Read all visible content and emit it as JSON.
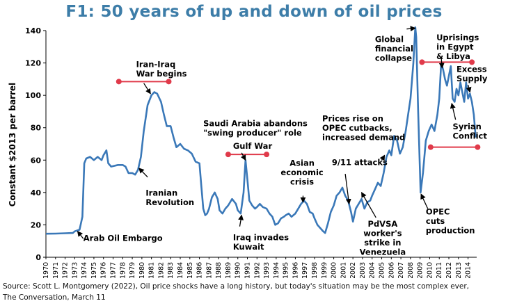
{
  "title": "F1: 50 years of up and down of oil prices",
  "source_line1": "Source: Scott L. Montgomery (2022), Oil price shocks have a long history, but today's situation may be the most complex ever,",
  "source_line2": "The Conversation, March 11",
  "colors": {
    "title": "#3d7da8",
    "line": "#3a78b8",
    "marker": "#e03a4a",
    "axis": "#000000"
  },
  "chart_data": {
    "type": "line",
    "title": "",
    "xlabel": "",
    "ylabel": "Constant $2013 per barrel",
    "xlim": [
      1970,
      2014.9
    ],
    "ylim": [
      0,
      140
    ],
    "yticks": [
      0,
      20,
      40,
      60,
      80,
      100,
      120,
      140
    ],
    "xticks": [
      "1970",
      "1971",
      "1972",
      "1973",
      "1974",
      "1975",
      "1976",
      "1977",
      "1978",
      "1979",
      "1980",
      "1981",
      "1982",
      "1983",
      "1984",
      "1985",
      "1986",
      "1987",
      "1988",
      "1989",
      "1990",
      "1991",
      "1992",
      "1993",
      "1994",
      "1995",
      "1996",
      "1997",
      "1998",
      "1999",
      "2000",
      "2001",
      "2002",
      "2003",
      "2004",
      "2005",
      "2006",
      "2007",
      "2008",
      "2009",
      "2010",
      "2011",
      "2012",
      "2013",
      "2014"
    ],
    "series": [
      {
        "name": "",
        "points": [
          [
            1970.0,
            14.5
          ],
          [
            1971.0,
            14.6
          ],
          [
            1972.0,
            14.8
          ],
          [
            1972.8,
            15.0
          ],
          [
            1973.0,
            16.0
          ],
          [
            1973.5,
            17.0
          ],
          [
            1973.8,
            25
          ],
          [
            1974.0,
            58
          ],
          [
            1974.2,
            61
          ],
          [
            1974.6,
            62
          ],
          [
            1975.0,
            60
          ],
          [
            1975.4,
            62
          ],
          [
            1975.8,
            60
          ],
          [
            1976.0,
            63
          ],
          [
            1976.3,
            66
          ],
          [
            1976.5,
            58
          ],
          [
            1976.8,
            56
          ],
          [
            1977.5,
            57
          ],
          [
            1978.0,
            57
          ],
          [
            1978.3,
            56
          ],
          [
            1978.6,
            52
          ],
          [
            1979.0,
            52
          ],
          [
            1979.3,
            51
          ],
          [
            1979.6,
            54
          ],
          [
            1979.9,
            62
          ],
          [
            1980.2,
            78
          ],
          [
            1980.6,
            94
          ],
          [
            1981.0,
            100
          ],
          [
            1981.3,
            102
          ],
          [
            1981.6,
            101
          ],
          [
            1982.0,
            96
          ],
          [
            1982.3,
            88
          ],
          [
            1982.6,
            81
          ],
          [
            1983.0,
            81
          ],
          [
            1983.3,
            74
          ],
          [
            1983.6,
            68
          ],
          [
            1984.0,
            70
          ],
          [
            1984.4,
            67
          ],
          [
            1984.8,
            66
          ],
          [
            1985.2,
            64
          ],
          [
            1985.6,
            59
          ],
          [
            1986.0,
            58
          ],
          [
            1986.2,
            44
          ],
          [
            1986.4,
            30
          ],
          [
            1986.6,
            26
          ],
          [
            1986.8,
            27
          ],
          [
            1987.0,
            30
          ],
          [
            1987.3,
            37
          ],
          [
            1987.6,
            40
          ],
          [
            1987.9,
            36
          ],
          [
            1988.1,
            29
          ],
          [
            1988.4,
            27
          ],
          [
            1988.7,
            30
          ],
          [
            1989.0,
            32
          ],
          [
            1989.4,
            36
          ],
          [
            1989.8,
            33
          ],
          [
            1990.0,
            29
          ],
          [
            1990.3,
            27
          ],
          [
            1990.6,
            40
          ],
          [
            1990.8,
            60
          ],
          [
            1991.0,
            48
          ],
          [
            1991.2,
            35
          ],
          [
            1991.5,
            32
          ],
          [
            1991.8,
            30
          ],
          [
            1992.0,
            31
          ],
          [
            1992.3,
            33
          ],
          [
            1992.6,
            31
          ],
          [
            1993.0,
            30
          ],
          [
            1993.3,
            27
          ],
          [
            1993.6,
            25
          ],
          [
            1993.9,
            20
          ],
          [
            1994.2,
            21
          ],
          [
            1994.5,
            24
          ],
          [
            1994.8,
            25
          ],
          [
            1995.0,
            26
          ],
          [
            1995.3,
            27
          ],
          [
            1995.6,
            25
          ],
          [
            1996.0,
            27
          ],
          [
            1996.3,
            30
          ],
          [
            1996.6,
            33
          ],
          [
            1996.9,
            35
          ],
          [
            1997.2,
            33
          ],
          [
            1997.5,
            28
          ],
          [
            1997.8,
            27
          ],
          [
            1998.0,
            24
          ],
          [
            1998.3,
            20
          ],
          [
            1998.6,
            18
          ],
          [
            1998.9,
            16
          ],
          [
            1999.1,
            15
          ],
          [
            1999.4,
            21
          ],
          [
            1999.7,
            28
          ],
          [
            2000.0,
            32
          ],
          [
            2000.3,
            38
          ],
          [
            2000.6,
            40
          ],
          [
            2000.9,
            43
          ],
          [
            2001.2,
            38
          ],
          [
            2001.5,
            35
          ],
          [
            2001.8,
            28
          ],
          [
            2002.0,
            22
          ],
          [
            2002.3,
            30
          ],
          [
            2002.6,
            33
          ],
          [
            2002.9,
            36
          ],
          [
            2003.2,
            30
          ],
          [
            2003.5,
            34
          ],
          [
            2003.8,
            35
          ],
          [
            2004.0,
            38
          ],
          [
            2004.3,
            42
          ],
          [
            2004.6,
            46
          ],
          [
            2004.9,
            44
          ],
          [
            2005.2,
            52
          ],
          [
            2005.5,
            62
          ],
          [
            2005.8,
            66
          ],
          [
            2006.0,
            63
          ],
          [
            2006.3,
            75
          ],
          [
            2006.6,
            72
          ],
          [
            2006.9,
            64
          ],
          [
            2007.2,
            68
          ],
          [
            2007.5,
            78
          ],
          [
            2007.8,
            90
          ],
          [
            2008.0,
            98
          ],
          [
            2008.3,
            120
          ],
          [
            2008.5,
            142
          ],
          [
            2008.6,
            136
          ],
          [
            2008.8,
            90
          ],
          [
            2008.95,
            60
          ],
          [
            2009.05,
            40
          ],
          [
            2009.3,
            52
          ],
          [
            2009.6,
            72
          ],
          [
            2009.9,
            78
          ],
          [
            2010.2,
            82
          ],
          [
            2010.5,
            78
          ],
          [
            2010.8,
            88
          ],
          [
            2011.0,
            98
          ],
          [
            2011.2,
            120
          ],
          [
            2011.4,
            116
          ],
          [
            2011.6,
            110
          ],
          [
            2011.8,
            106
          ],
          [
            2012.0,
            112
          ],
          [
            2012.2,
            118
          ],
          [
            2012.4,
            98
          ],
          [
            2012.6,
            96
          ],
          [
            2012.8,
            104
          ],
          [
            2013.0,
            100
          ],
          [
            2013.2,
            108
          ],
          [
            2013.4,
            102
          ],
          [
            2013.6,
            96
          ],
          [
            2013.8,
            108
          ],
          [
            2014.0,
            98
          ],
          [
            2014.2,
            101
          ],
          [
            2014.4,
            96
          ],
          [
            2014.6,
            88
          ],
          [
            2014.8,
            74
          ]
        ]
      }
    ],
    "range_markers": [
      {
        "name": "iran-iraq-war",
        "x": [
          1977.6,
          1982.8
        ],
        "y": 108.5
      },
      {
        "name": "gulf-war",
        "x": [
          1989.0,
          1993.0
        ],
        "y": 63.5
      },
      {
        "name": "arab-spring",
        "x": [
          2009.2,
          2014.4
        ],
        "y": 120.5
      },
      {
        "name": "syrian-conflict",
        "x": [
          2010.1,
          2015.0
        ],
        "y": 68
      }
    ],
    "annotations": [
      {
        "name": "arab-oil-embargo",
        "lines": [
          "Arab Oil Embargo"
        ],
        "at": [
          1973.9,
          10
        ],
        "align": "start",
        "arrow_from": [
          1973.9,
          11.5
        ],
        "arrow_to": [
          1973.3,
          16
        ]
      },
      {
        "name": "iranian-revolution",
        "lines": [
          "Iranian",
          "Revolution"
        ],
        "at": [
          1980.4,
          38
        ],
        "align": "start",
        "arrow_from": [
          1980.6,
          49.5
        ],
        "arrow_to": [
          1979.7,
          55
        ]
      },
      {
        "name": "iran-iraq-war",
        "lines": [
          "Iran-Iraq",
          "War begins"
        ],
        "at": [
          1979.4,
          117.5
        ],
        "align": "start",
        "arrow_from": [
          1980.2,
          107.5
        ],
        "arrow_to": [
          1980.9,
          101
        ]
      },
      {
        "name": "saudi-arabia",
        "lines": [
          "Saudi Arabia abandons",
          "\"swing producer\" role"
        ],
        "at": [
          1986.4,
          81
        ],
        "align": "start"
      },
      {
        "name": "gulf-war",
        "lines": [
          "Gulf War"
        ],
        "at": [
          1989.5,
          67
        ],
        "align": "start",
        "arrow_from": [
          1990.4,
          64.5
        ],
        "arrow_to": [
          1990.8,
          60
        ]
      },
      {
        "name": "iraq-invades-kuwait",
        "lines": [
          "Iraq invades",
          "Kuwait"
        ],
        "at": [
          1989.5,
          10.5
        ],
        "align": "start",
        "arrow_from": [
          1990.2,
          19
        ],
        "arrow_to": [
          1990.4,
          26
        ]
      },
      {
        "name": "asian-crisis",
        "lines": [
          "Asian",
          "economic",
          "crisis"
        ],
        "at": [
          1996.7,
          56.5
        ],
        "align": "middle",
        "arrow_from": [
          1996.8,
          38
        ],
        "arrow_to": [
          1996.8,
          34
        ]
      },
      {
        "name": "9-11-attacks",
        "lines": [
          "9/11 attacks"
        ],
        "at": [
          1999.8,
          57
        ],
        "align": "start",
        "arrow_from": [
          2001.2,
          51.5
        ],
        "arrow_to": [
          2001.6,
          33
        ]
      },
      {
        "name": "opec-cutbacks",
        "lines": [
          "Prices rise on",
          "OPEC cutbacks,",
          "increased demand"
        ],
        "at": [
          1998.8,
          84
        ],
        "align": "start",
        "arrow_from": [
          2005.0,
          60
        ],
        "arrow_to": [
          2005.3,
          63
        ]
      },
      {
        "name": "pdvsa-strike",
        "lines": [
          "PdVSA",
          "worker's",
          "strike in",
          "Venezuela"
        ],
        "at": [
          2005.1,
          19
        ],
        "align": "middle",
        "arrow_from": [
          2004.4,
          24.5
        ],
        "arrow_to": [
          2002.9,
          40
        ]
      },
      {
        "name": "global-financial-collapse",
        "lines": [
          "Global",
          "financial",
          "collapse"
        ],
        "at": [
          2004.3,
          133
        ],
        "align": "start",
        "arrow_from": [
          2007.6,
          141
        ],
        "arrow_to": [
          2008.5,
          141.5
        ]
      },
      {
        "name": "uprisings",
        "lines": [
          "Uprisings",
          "in Egypt",
          "& Libya"
        ],
        "at": [
          2010.7,
          134
        ],
        "align": "start",
        "arrow_from": [
          2011.2,
          123.5
        ],
        "arrow_to": [
          2011.3,
          117
        ]
      },
      {
        "name": "excess-supply",
        "lines": [
          "Excess",
          "Supply"
        ],
        "at": [
          2012.8,
          114.5
        ],
        "align": "start",
        "arrow_from": [
          2014.0,
          106.5
        ],
        "arrow_to": [
          2014.2,
          102
        ]
      },
      {
        "name": "syrian-conflict",
        "lines": [
          "Syrian",
          "Conflict"
        ],
        "at": [
          2012.4,
          79
        ],
        "align": "start",
        "arrow_from": [
          2012.7,
          85
        ],
        "arrow_to": [
          2012.3,
          95
        ]
      },
      {
        "name": "opec-cuts-production",
        "lines": [
          "OPEC",
          "cuts",
          "production"
        ],
        "at": [
          2009.6,
          26.5
        ],
        "align": "start",
        "arrow_from": [
          2009.8,
          30
        ],
        "arrow_to": [
          2009.1,
          39
        ]
      }
    ],
    "grid": false,
    "legend": "none"
  }
}
